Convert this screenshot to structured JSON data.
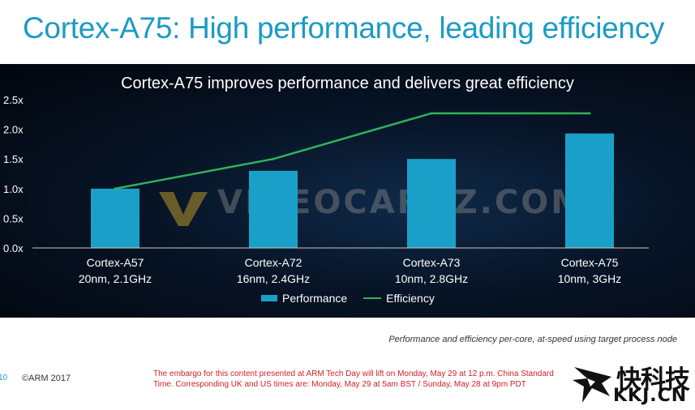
{
  "slide": {
    "title": "Cortex-A75: High performance, leading efficiency",
    "caption": "Performance and efficiency per-core, at-speed using target process node",
    "page_number": "10",
    "copyright": "©ARM 2017",
    "embargo": "The embargo for this content presented at ARM Tech Day will lift on Monday, May 29 at 12 p.m. China Standard Time. Corresponding UK and US times are: Monday, May 29 at 5am BST / Sunday, May 28 at 9pm PDT"
  },
  "watermark": {
    "text": "VIDEOCARDZ.COM",
    "logo_text_cn": "快科技",
    "logo_text_domain": "KKJ.CN"
  },
  "colors": {
    "accent": "#1a9bc4",
    "bar": "#1aa0c8",
    "line": "#2fb35a",
    "embargo_red": "#d0202a"
  },
  "chart_data": {
    "type": "bar",
    "title": "Cortex-A75 improves performance and delivers great efficiency",
    "categories": [
      [
        "Cortex-A57",
        "20nm, 2.1GHz"
      ],
      [
        "Cortex-A72",
        "16nm, 2.4GHz"
      ],
      [
        "Cortex-A73",
        "10nm, 2.8GHz"
      ],
      [
        "Cortex-A75",
        "10nm, 3GHz"
      ]
    ],
    "series": [
      {
        "name": "Performance",
        "type": "bar",
        "values": [
          1.0,
          1.3,
          1.5,
          1.93
        ]
      },
      {
        "name": "Efficiency",
        "type": "line",
        "values": [
          1.0,
          1.5,
          2.27,
          2.27
        ]
      }
    ],
    "yticks": [
      "0.0x",
      "0.5x",
      "1.0x",
      "1.5x",
      "2.0x",
      "2.5x"
    ],
    "ylim": [
      0,
      2.5
    ],
    "grid": false,
    "legend_position": "bottom"
  }
}
